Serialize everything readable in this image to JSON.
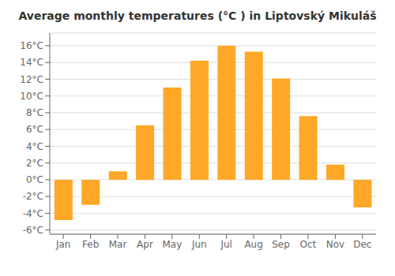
{
  "chart_data": {
    "type": "bar",
    "title": "Average monthly temperatures (°C ) in Liptovský Mikuláš",
    "categories": [
      "Jan",
      "Feb",
      "Mar",
      "Apr",
      "May",
      "Jun",
      "Jul",
      "Aug",
      "Sep",
      "Oct",
      "Nov",
      "Dec"
    ],
    "values": [
      -4.8,
      -3.0,
      1.0,
      6.5,
      11.0,
      14.2,
      16.0,
      15.3,
      12.1,
      7.6,
      1.8,
      -3.3
    ],
    "color": "#FFA726",
    "ylim": [
      -6.5,
      17.5
    ],
    "yticks": [
      {
        "value": -6,
        "label": "-6°C"
      },
      {
        "value": -4,
        "label": "-4°C"
      },
      {
        "value": -2,
        "label": "-2°C"
      },
      {
        "value": 0,
        "label": "0°C"
      },
      {
        "value": 2,
        "label": "2°C"
      },
      {
        "value": 4,
        "label": "4°C"
      },
      {
        "value": 6,
        "label": "6°C"
      },
      {
        "value": 8,
        "label": "8°C"
      },
      {
        "value": 10,
        "label": "10°C"
      },
      {
        "value": 12,
        "label": "12°C"
      },
      {
        "value": 14,
        "label": "14°C"
      },
      {
        "value": 16,
        "label": "16°C"
      }
    ],
    "grid": true
  }
}
